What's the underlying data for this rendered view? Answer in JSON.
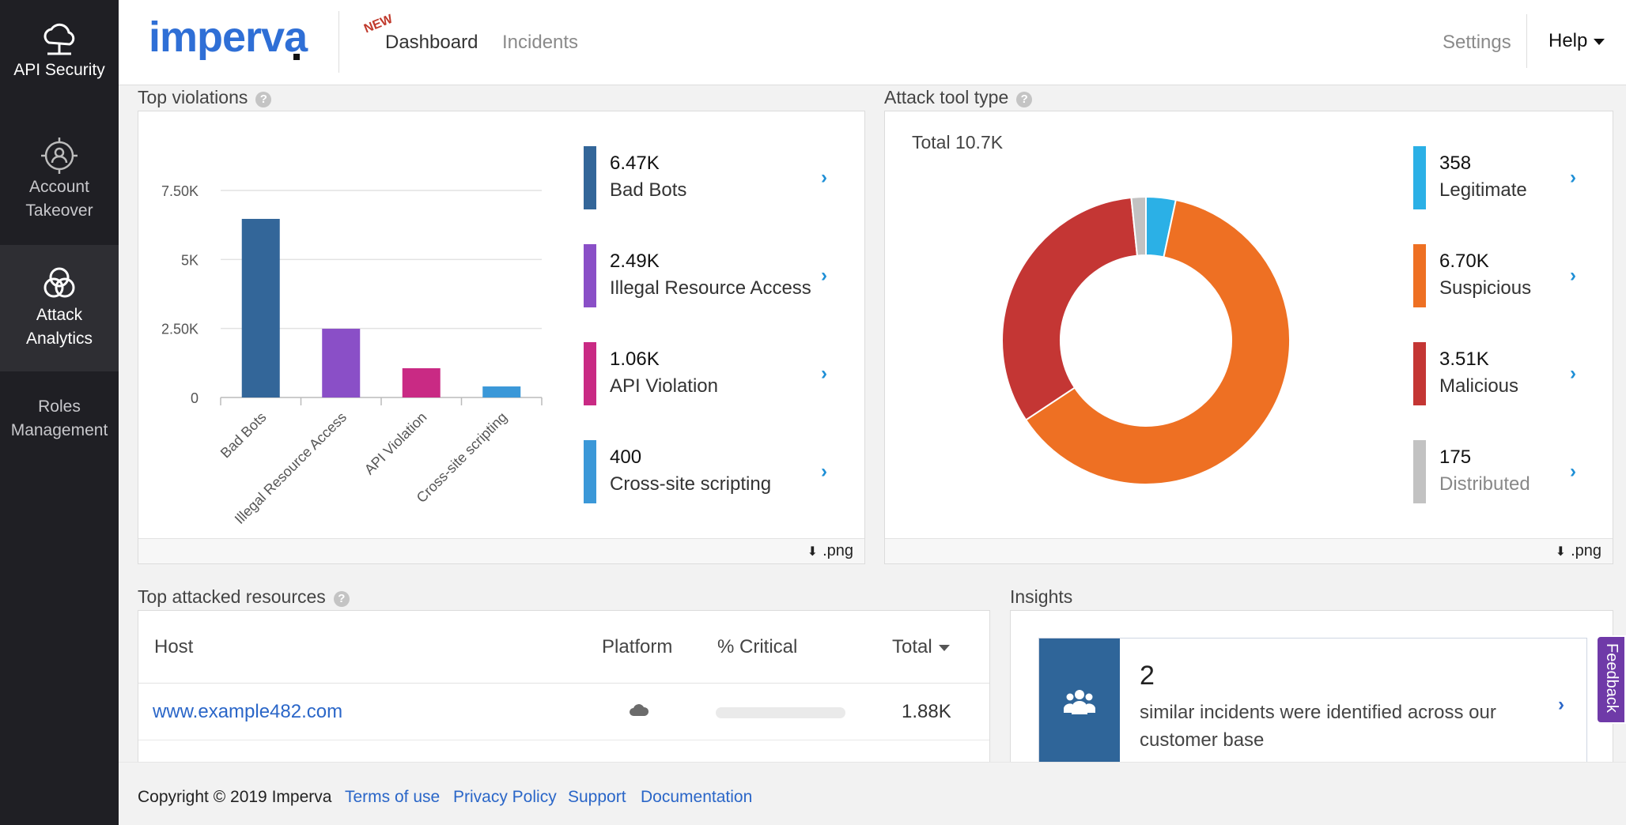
{
  "sidebar": {
    "items": [
      {
        "label": "API Security",
        "icon": "api-cloud-icon",
        "active": false
      },
      {
        "label_line1": "Account",
        "label_line2": "Takeover",
        "icon": "target-user-icon"
      },
      {
        "label_line1": "Attack",
        "label_line2": "Analytics",
        "icon": "venn-icon",
        "active": true
      },
      {
        "label_line1": "Roles",
        "label_line2": "Management"
      }
    ]
  },
  "header": {
    "logo": "imperva",
    "nav": {
      "new_badge": "NEW",
      "dashboard": "Dashboard",
      "incidents": "Incidents",
      "settings": "Settings",
      "help": "Help"
    }
  },
  "top_violations": {
    "title": "Top violations",
    "help": "?",
    "png_label": ".png",
    "items": [
      {
        "value": "6.47K",
        "name": "Bad Bots",
        "color": "#336699"
      },
      {
        "value": "2.49K",
        "name": "Illegal Resource Access",
        "color": "#8a4fc7"
      },
      {
        "value": "1.06K",
        "name": "API Violation",
        "color": "#c92a84"
      },
      {
        "value": "400",
        "name": "Cross-site scripting",
        "color": "#3b98d8"
      }
    ]
  },
  "attack_tool": {
    "title": "Attack tool type",
    "help": "?",
    "total": "Total 10.7K",
    "png_label": ".png",
    "items": [
      {
        "value": "358",
        "name": "Legitimate",
        "color": "#2bb0e6"
      },
      {
        "value": "6.70K",
        "name": "Suspicious",
        "color": "#ee7023"
      },
      {
        "value": "3.51K",
        "name": "Malicious",
        "color": "#c43634"
      },
      {
        "value": "175",
        "name": "Distributed",
        "color": "#c2c2c2"
      }
    ]
  },
  "top_resources": {
    "title": "Top attacked resources",
    "help": "?",
    "columns": {
      "host": "Host",
      "platform": "Platform",
      "critical": "% Critical",
      "total": "Total"
    },
    "rows": [
      {
        "host": "www.example482.com",
        "platform_icon": "cloud-icon",
        "critical_fraction": 0.0,
        "total": "1.88K"
      }
    ]
  },
  "insights": {
    "title": "Insights",
    "count": "2",
    "text": "similar incidents were identified across our customer base",
    "icon": "users-icon"
  },
  "feedback": "Feedback",
  "footer": {
    "copyright": "Copyright © 2019 Imperva",
    "links": [
      "Terms of use",
      "Privacy Policy",
      "Support",
      "Documentation"
    ]
  },
  "chart_data": [
    {
      "type": "bar",
      "categories": [
        "Bad Bots",
        "Illegal Resource Access",
        "API Violation",
        "Cross-site scripting"
      ],
      "values": [
        6470,
        2490,
        1060,
        400
      ],
      "colors": [
        "#336699",
        "#8a4fc7",
        "#c92a84",
        "#3b98d8"
      ],
      "yticks": [
        "0",
        "2.50K",
        "5K",
        "7.50K"
      ],
      "ytick_values": [
        0,
        2500,
        5000,
        7500
      ],
      "ylim": [
        0,
        7500
      ],
      "grid": true
    },
    {
      "type": "pie",
      "donut": true,
      "labels": [
        "Legitimate",
        "Suspicious",
        "Malicious",
        "Distributed"
      ],
      "values": [
        358,
        6700,
        3510,
        175
      ],
      "colors": [
        "#2bb0e6",
        "#ee7023",
        "#c43634",
        "#c2c2c2"
      ]
    }
  ]
}
